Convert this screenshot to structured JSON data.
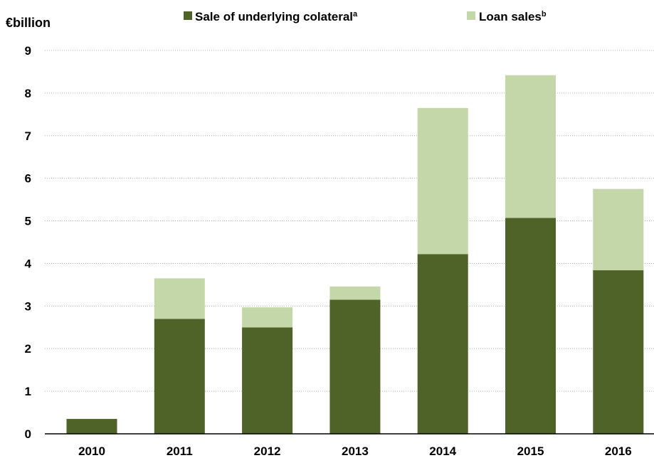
{
  "chart_data": {
    "type": "bar",
    "stacked": true,
    "unit_label": "€billion",
    "categories": [
      "2010",
      "2011",
      "2012",
      "2013",
      "2014",
      "2015",
      "2016"
    ],
    "ylim": [
      0,
      9
    ],
    "yticks": [
      0,
      1,
      2,
      3,
      4,
      5,
      6,
      7,
      8,
      9
    ],
    "grid": true,
    "legend_position": "top",
    "series": [
      {
        "name": "Sale of underlying colateral",
        "superscript": "a",
        "color": "#4f6228",
        "values": [
          0.35,
          2.7,
          2.5,
          3.15,
          4.22,
          5.07,
          3.84
        ]
      },
      {
        "name": "Loan sales",
        "superscript": "b",
        "color": "#c4d7a8",
        "values": [
          0.0,
          0.95,
          0.47,
          0.31,
          3.43,
          3.35,
          1.91
        ]
      }
    ]
  }
}
